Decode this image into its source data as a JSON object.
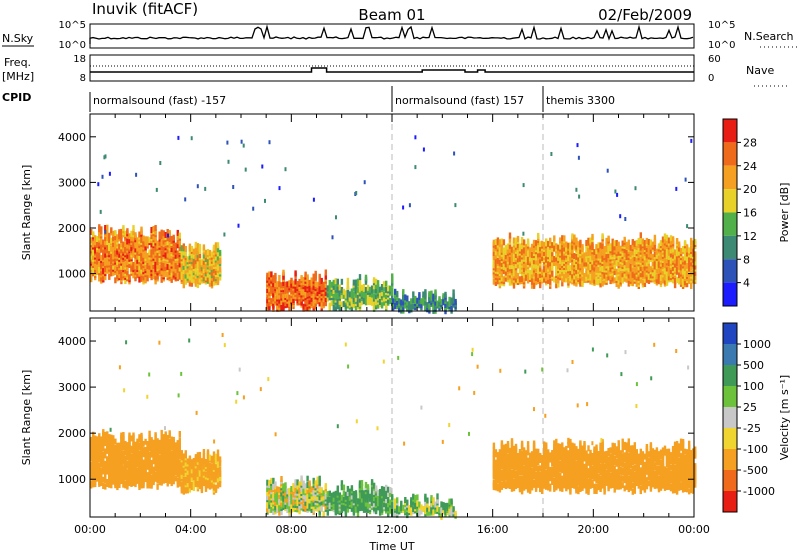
{
  "header": {
    "radar": "Inuvik (fitACF)",
    "beam": "Beam 01",
    "date": "02/Feb/2009"
  },
  "noise_panel": {
    "left_label": "N.Sky",
    "left_ticks": [
      "10^5",
      "10^0"
    ],
    "right_label": "N.Search",
    "right_ticks": [
      "10^5",
      "10^0"
    ]
  },
  "freq_panel": {
    "left_label_1": "Freq.",
    "left_label_2": "[MHz]",
    "left_ticks": [
      "18",
      "8"
    ],
    "right_label": "Nave",
    "right_ticks": [
      "60",
      "0"
    ]
  },
  "cpid": {
    "label": "CPID",
    "segments": [
      {
        "text": "normalsound (fast) -157",
        "start_hour": 0
      },
      {
        "text": "normalsound (fast) 157",
        "start_hour": 12
      },
      {
        "text": "themis 3300",
        "start_hour": 18
      }
    ]
  },
  "colors": {
    "power_scale": [
      "#1c1cff",
      "#2d53b8",
      "#3c8a73",
      "#52b04a",
      "#e8d22a",
      "#f5a020",
      "#ef6a1a",
      "#e81e14"
    ],
    "velocity_scale": [
      "#2045c0",
      "#3a7ab0",
      "#3f9a58",
      "#6cc23a",
      "#c8c8c8",
      "#f0d530",
      "#f5a020",
      "#ef6a1a",
      "#e81e14"
    ]
  },
  "chart_data": [
    {
      "type": "heatmap",
      "title": "",
      "xlabel": "Time UT",
      "ylabel": "Slant Range [km]",
      "xlim": [
        0,
        24
      ],
      "ylim": [
        180,
        4500
      ],
      "x_ticks": [
        "00:00",
        "04:00",
        "08:00",
        "12:00",
        "16:00",
        "20:00",
        "00:00"
      ],
      "y_ticks": [
        1000,
        2000,
        3000,
        4000
      ],
      "colorbar_label": "Power [dB]",
      "colorbar_ticks": [
        4,
        8,
        12,
        16,
        20,
        24,
        28
      ],
      "regions": [
        {
          "t0": 0.0,
          "t1": 3.6,
          "r0": 900,
          "r1": 1900,
          "value": 24
        },
        {
          "t0": 3.6,
          "t1": 5.2,
          "r0": 800,
          "r1": 1500,
          "value": 20
        },
        {
          "t0": 7.0,
          "t1": 9.4,
          "r0": 300,
          "r1": 900,
          "value": 26
        },
        {
          "t0": 9.4,
          "t1": 12.0,
          "r0": 300,
          "r1": 800,
          "value": 14
        },
        {
          "t0": 12.0,
          "t1": 14.5,
          "r0": 250,
          "r1": 500,
          "value": 10
        },
        {
          "t0": 16.0,
          "t1": 24.0,
          "r0": 800,
          "r1": 1700,
          "value": 22
        }
      ]
    },
    {
      "type": "heatmap",
      "title": "",
      "xlabel": "Time UT",
      "ylabel": "Slant Range [km]",
      "xlim": [
        0,
        24
      ],
      "ylim": [
        180,
        4500
      ],
      "x_ticks": [
        "00:00",
        "04:00",
        "08:00",
        "12:00",
        "16:00",
        "20:00",
        "00:00"
      ],
      "y_ticks": [
        1000,
        2000,
        3000,
        4000
      ],
      "colorbar_label": "Velocity [m s⁻¹]",
      "colorbar_ticks": [
        1000,
        500,
        100,
        25,
        -25,
        -100,
        -500,
        -1000
      ],
      "regions": [
        {
          "t0": 0.0,
          "t1": 3.6,
          "r0": 900,
          "r1": 1900,
          "value": -300
        },
        {
          "t0": 3.6,
          "t1": 5.2,
          "r0": 800,
          "r1": 1500,
          "value": -200
        },
        {
          "t0": 7.0,
          "t1": 9.4,
          "r0": 300,
          "r1": 900,
          "value": 0
        },
        {
          "t0": 9.4,
          "t1": 12.0,
          "r0": 300,
          "r1": 800,
          "value": 150
        },
        {
          "t0": 12.0,
          "t1": 14.5,
          "r0": 250,
          "r1": 500,
          "value": 50
        },
        {
          "t0": 16.0,
          "t1": 24.0,
          "r0": 800,
          "r1": 1700,
          "value": -300
        }
      ]
    }
  ]
}
